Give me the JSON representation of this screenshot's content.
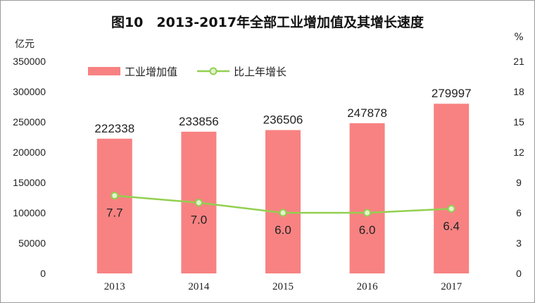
{
  "chart_data": {
    "type": "bar",
    "title": "图10　2013-2017年全部工业增加值及其增长速度",
    "categories": [
      "2013",
      "2014",
      "2015",
      "2016",
      "2017"
    ],
    "series": [
      {
        "name": "工业增加值",
        "type": "bar",
        "axis": "left",
        "values": [
          222338,
          233856,
          236506,
          247878,
          279997
        ]
      },
      {
        "name": "比上年增长",
        "type": "line",
        "axis": "right",
        "values": [
          7.7,
          7.0,
          6.0,
          6.0,
          6.4
        ]
      }
    ],
    "bar_labels": [
      "222338",
      "233856",
      "236506",
      "247878",
      "279997"
    ],
    "line_labels": [
      "7.7",
      "7.0",
      "6.0",
      "6.0",
      "6.4"
    ],
    "left_axis": {
      "unit": "亿元",
      "ylim": [
        0,
        350000
      ],
      "ticks": [
        0,
        50000,
        100000,
        150000,
        200000,
        250000,
        300000,
        350000
      ],
      "tick_labels": [
        "0",
        "50000",
        "100000",
        "150000",
        "200000",
        "250000",
        "300000",
        "350000"
      ]
    },
    "right_axis": {
      "unit": "%",
      "ylim": [
        0,
        21
      ],
      "ticks": [
        0,
        3,
        6,
        9,
        12,
        15,
        18,
        21
      ],
      "tick_labels": [
        "0",
        "3",
        "6",
        "9",
        "12",
        "15",
        "18",
        "21"
      ]
    },
    "grid": false,
    "legend_position": "top-left",
    "colors": {
      "bar": "#f88282",
      "line": "#92d050",
      "marker_fill": "#e4f3cf",
      "text": "#222222"
    }
  }
}
